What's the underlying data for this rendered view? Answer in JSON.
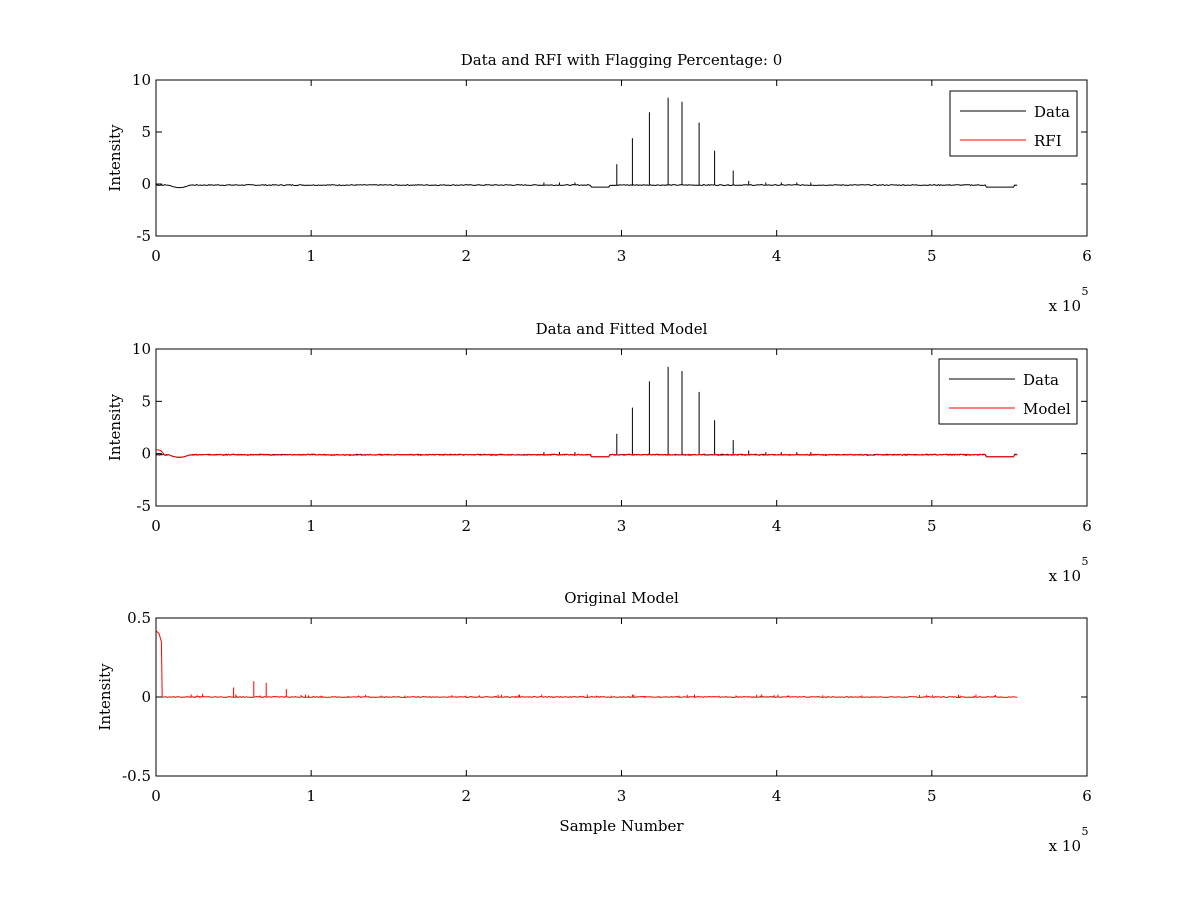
{
  "chart_data": [
    {
      "type": "line",
      "title": "Data and RFI with Flagging Percentage: 0",
      "xlabel": "",
      "ylabel": "Intensity",
      "xlim": [
        0,
        600000
      ],
      "ylim": [
        -5,
        10
      ],
      "x_ticks": [
        0,
        1,
        2,
        3,
        4,
        5,
        6
      ],
      "y_ticks": [
        -5,
        0,
        5,
        10
      ],
      "x_multiplier": {
        "base": "x 10",
        "exponent": "5"
      },
      "grid": false,
      "legend_position": "top-right",
      "baseline": -0.1,
      "series": [
        {
          "name": "Data",
          "color": "#000000",
          "x_range": [
            0,
            555000
          ],
          "spikes": [
            {
              "x": 297000,
              "y": 1.9
            },
            {
              "x": 307000,
              "y": 4.4
            },
            {
              "x": 318000,
              "y": 6.9
            },
            {
              "x": 330000,
              "y": 8.3
            },
            {
              "x": 339000,
              "y": 7.9
            },
            {
              "x": 350000,
              "y": 5.9
            },
            {
              "x": 360000,
              "y": 3.2
            },
            {
              "x": 372000,
              "y": 1.3
            },
            {
              "x": 382000,
              "y": 0.3
            }
          ]
        },
        {
          "name": "RFI",
          "color": "#ff0000",
          "x_range": [],
          "spikes": []
        }
      ]
    },
    {
      "type": "line",
      "title": "Data and Fitted Model",
      "xlabel": "",
      "ylabel": "Intensity",
      "xlim": [
        0,
        600000
      ],
      "ylim": [
        -5,
        10
      ],
      "x_ticks": [
        0,
        1,
        2,
        3,
        4,
        5,
        6
      ],
      "y_ticks": [
        -5,
        0,
        5,
        10
      ],
      "x_multiplier": {
        "base": "x 10",
        "exponent": "5"
      },
      "grid": false,
      "legend_position": "top-right",
      "baseline": -0.1,
      "series": [
        {
          "name": "Data",
          "color": "#000000",
          "x_range": [
            0,
            555000
          ],
          "spikes": [
            {
              "x": 297000,
              "y": 1.9
            },
            {
              "x": 307000,
              "y": 4.4
            },
            {
              "x": 318000,
              "y": 6.9
            },
            {
              "x": 330000,
              "y": 8.3
            },
            {
              "x": 339000,
              "y": 7.9
            },
            {
              "x": 350000,
              "y": 5.9
            },
            {
              "x": 360000,
              "y": 3.2
            },
            {
              "x": 372000,
              "y": 1.3
            },
            {
              "x": 382000,
              "y": 0.3
            }
          ]
        },
        {
          "name": "Model",
          "color": "#ff0000",
          "x_range": [
            0,
            555000
          ],
          "start_values": [
            {
              "x": 0,
              "y": 0.4
            },
            {
              "x": 3000,
              "y": 0.3
            },
            {
              "x": 5000,
              "y": 0.0
            }
          ],
          "spikes": []
        }
      ]
    },
    {
      "type": "line",
      "title": "Original Model",
      "xlabel": "Sample Number",
      "ylabel": "Intensity",
      "xlim": [
        0,
        600000
      ],
      "ylim": [
        -0.5,
        0.5
      ],
      "x_ticks": [
        0,
        1,
        2,
        3,
        4,
        5,
        6
      ],
      "y_ticks": [
        -0.5,
        0,
        0.5
      ],
      "x_multiplier": {
        "base": "x 10",
        "exponent": "5"
      },
      "grid": false,
      "legend_position": "none",
      "baseline": 0.0,
      "series": [
        {
          "name": "Original Model",
          "color": "#ff0000",
          "x_range": [
            0,
            555000
          ],
          "start_values": [
            {
              "x": 0,
              "y": 0.42
            },
            {
              "x": 2000,
              "y": 0.4
            },
            {
              "x": 3500,
              "y": 0.35
            },
            {
              "x": 4000,
              "y": 0.0
            }
          ],
          "spikes": [
            {
              "x": 30000,
              "y": 0.02
            },
            {
              "x": 50000,
              "y": 0.06
            },
            {
              "x": 63000,
              "y": 0.1
            },
            {
              "x": 71000,
              "y": 0.09
            },
            {
              "x": 84000,
              "y": 0.05
            }
          ]
        }
      ]
    }
  ]
}
